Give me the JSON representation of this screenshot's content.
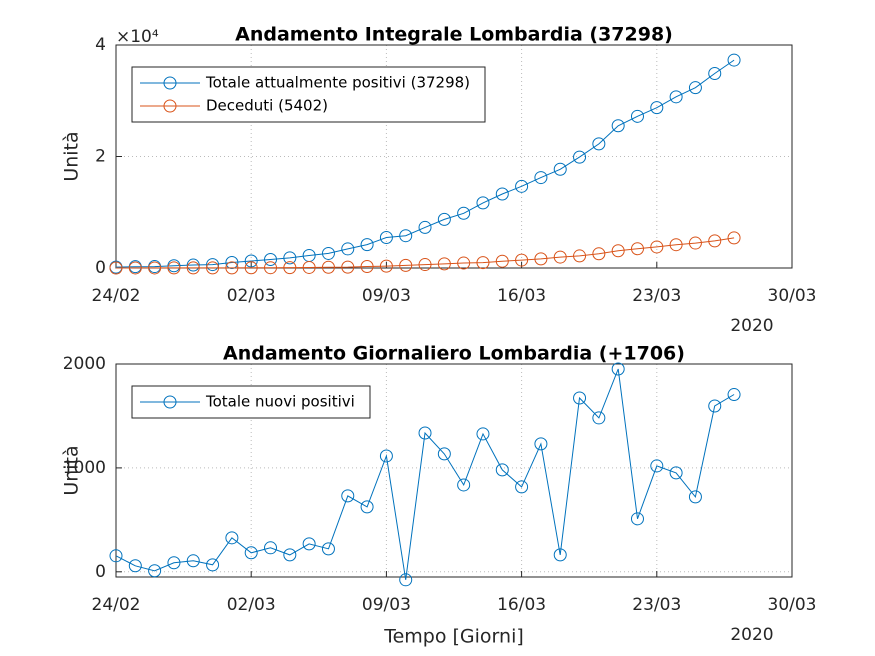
{
  "chart_data": [
    {
      "type": "line",
      "title": "Andamento Integrale Lombardia (37298)",
      "ylabel": "Unità",
      "y_exponent_label": "×10⁴",
      "x_year_label": "2020",
      "x": [
        "2020-02-24",
        "2020-02-25",
        "2020-02-26",
        "2020-02-27",
        "2020-02-28",
        "2020-02-29",
        "2020-03-01",
        "2020-03-02",
        "2020-03-03",
        "2020-03-04",
        "2020-03-05",
        "2020-03-06",
        "2020-03-07",
        "2020-03-08",
        "2020-03-09",
        "2020-03-10",
        "2020-03-11",
        "2020-03-12",
        "2020-03-13",
        "2020-03-14",
        "2020-03-15",
        "2020-03-16",
        "2020-03-17",
        "2020-03-18",
        "2020-03-19",
        "2020-03-20",
        "2020-03-21",
        "2020-03-22",
        "2020-03-23",
        "2020-03-24",
        "2020-03-25",
        "2020-03-26",
        "2020-03-27"
      ],
      "series": [
        {
          "name": "Totale attualmente positivi (37298)",
          "color": "#0072BD",
          "values": [
            166,
            240,
            258,
            403,
            531,
            615,
            984,
            1254,
            1520,
            1820,
            2251,
            2612,
            3420,
            4189,
            5469,
            5791,
            7280,
            8725,
            9820,
            11685,
            13272,
            14649,
            16220,
            17713,
            19884,
            22264,
            25515,
            27206,
            28761,
            30703,
            32346,
            34889,
            37298
          ]
        },
        {
          "name": "Deceduti (5402)",
          "color": "#D95319",
          "values": [
            6,
            9,
            9,
            14,
            17,
            23,
            24,
            38,
            55,
            73,
            98,
            135,
            154,
            267,
            333,
            468,
            617,
            744,
            890,
            966,
            1218,
            1420,
            1640,
            1959,
            2168,
            2549,
            3095,
            3456,
            3776,
            4178,
            4474,
            4861,
            5402
          ]
        }
      ],
      "xlim": [
        "2020-02-24",
        "2020-03-30"
      ],
      "xticks": [
        {
          "value": "2020-02-24",
          "label": "24/02"
        },
        {
          "value": "2020-03-02",
          "label": "02/03"
        },
        {
          "value": "2020-03-09",
          "label": "09/03"
        },
        {
          "value": "2020-03-16",
          "label": "16/03"
        },
        {
          "value": "2020-03-23",
          "label": "23/03"
        },
        {
          "value": "2020-03-30",
          "label": "30/03"
        }
      ],
      "ylim": [
        0,
        40000
      ],
      "yticks": [
        0,
        {
          "value": 20000,
          "label": "2"
        },
        {
          "value": 40000,
          "label": "4"
        }
      ],
      "grid": true,
      "legend": "northwest"
    },
    {
      "type": "line",
      "title": "Andamento Giornaliero Lombardia (+1706)",
      "ylabel": "Unità",
      "xlabel": "Tempo [Giorni]",
      "x_year_label": "2020",
      "x": [
        "2020-02-24",
        "2020-02-25",
        "2020-02-26",
        "2020-02-27",
        "2020-02-28",
        "2020-02-29",
        "2020-03-01",
        "2020-03-02",
        "2020-03-03",
        "2020-03-04",
        "2020-03-05",
        "2020-03-06",
        "2020-03-07",
        "2020-03-08",
        "2020-03-09",
        "2020-03-10",
        "2020-03-11",
        "2020-03-12",
        "2020-03-13",
        "2020-03-14",
        "2020-03-15",
        "2020-03-16",
        "2020-03-17",
        "2020-03-18",
        "2020-03-19",
        "2020-03-20",
        "2020-03-21",
        "2020-03-22",
        "2020-03-23",
        "2020-03-24",
        "2020-03-25",
        "2020-03-26",
        "2020-03-27"
      ],
      "series": [
        {
          "name": "Totale nuovi positivi",
          "color": "#0072BD",
          "values": [
            154,
            58,
            10,
            87,
            106,
            67,
            327,
            183,
            231,
            163,
            269,
            221,
            731,
            625,
            1115,
            -77,
            1336,
            1135,
            836,
            1327,
            981,
            817,
            1231,
            163,
            1673,
            1481,
            1952,
            510,
            1019,
            952,
            721,
            1596,
            1706
          ]
        }
      ],
      "xlim": [
        "2020-02-24",
        "2020-03-30"
      ],
      "xticks": [
        {
          "value": "2020-02-24",
          "label": "24/02"
        },
        {
          "value": "2020-03-02",
          "label": "02/03"
        },
        {
          "value": "2020-03-09",
          "label": "09/03"
        },
        {
          "value": "2020-03-16",
          "label": "16/03"
        },
        {
          "value": "2020-03-23",
          "label": "23/03"
        },
        {
          "value": "2020-03-30",
          "label": "30/03"
        }
      ],
      "ylim": [
        -50,
        2000
      ],
      "yticks": [
        0,
        1000,
        2000
      ],
      "grid": true,
      "legend": "northwest"
    }
  ]
}
